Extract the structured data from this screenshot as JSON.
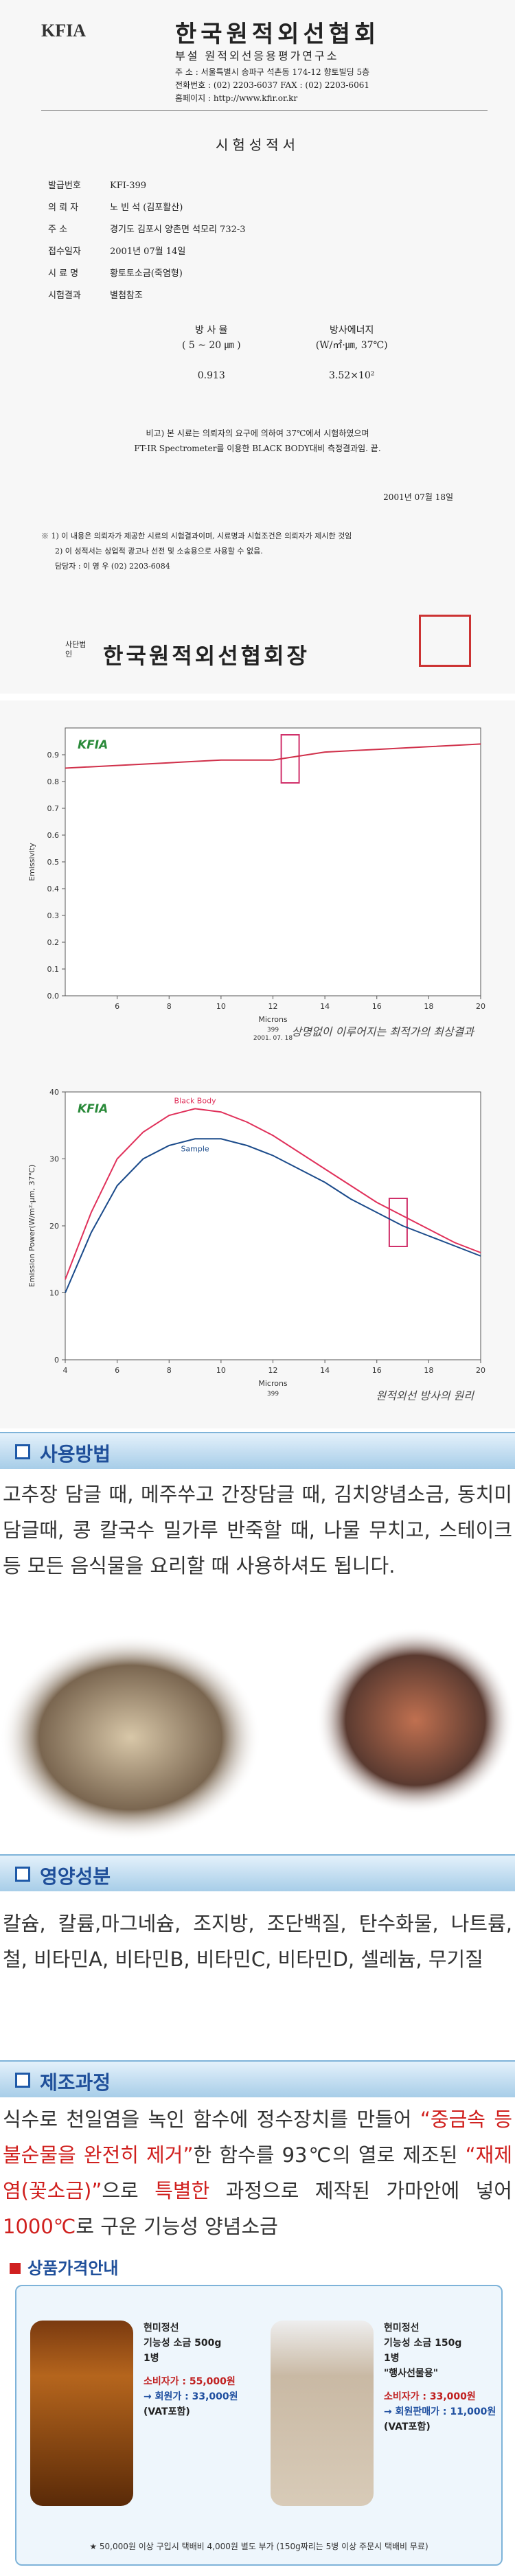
{
  "certificate": {
    "logo": "KFIA",
    "org": "한국원적외선협회",
    "institute": "부설 원적외선응용평가연구소",
    "address_lines": [
      "주 소 : 서울특별시 송파구 석촌동 174-12 향토빌딩 5층",
      "전화번호 : (02) 2203-6037   FAX : (02) 2203-6061",
      "홈페이지 : http://www.kfir.or.kr"
    ],
    "title": "시험성적서",
    "fields": [
      {
        "label": "발급번호",
        "value": "KFI-399"
      },
      {
        "label": "의 뢰 자",
        "value": "노 빈 석 (김포활산)"
      },
      {
        "label": "주 소",
        "value": "경기도 김포시 양촌면 석모리 732-3"
      },
      {
        "label": "접수일자",
        "value": "2001년 07월 14일"
      },
      {
        "label": "시 료 명",
        "value": "황토토소금(죽염형)"
      },
      {
        "label": "시험결과",
        "value": "별첨참조"
      }
    ],
    "results": {
      "headers": [
        [
          "방 사 율",
          "( 5 ~ 20 ㎛ )"
        ],
        [
          "방사에너지",
          "(W/㎡·㎛, 37℃)"
        ]
      ],
      "values": [
        "0.913",
        "3.52×10²"
      ]
    },
    "notes": [
      "비고) 본 시료는 의뢰자의 요구에 의하여 37℃에서 시험하였으며",
      "FT-IR Spectrometer를 이용한 BLACK BODY대비 측정결과임. 끝."
    ],
    "date": "2001년 07월 18일",
    "footnotes": [
      "※ 1) 이 내용은 의뢰자가 제공한 시료의 시험결과이며, 시료명과 시험조건은 의뢰자가 제시한 것임",
      "2) 이 성적서는 상업적 광고나 선전 및 소송용으로 사용할 수 없음."
    ],
    "contact": "담당자 : 이 영 우    (02) 2203-6084",
    "seal_prefix": "사단법인",
    "signature": "한국원적외선협회장"
  },
  "emissivity_chart": {
    "type": "line",
    "logo": "KFIA",
    "ylabel": "Emissivity",
    "xlabel": "Microns",
    "code": "399",
    "date": "2001. 07. 18",
    "annotation": "상명없이 이루어지는 최적가의 최상결과",
    "x": [
      4,
      6,
      8,
      10,
      12,
      14,
      16,
      18,
      20
    ],
    "series": [
      {
        "color": "#d0304a",
        "values": [
          0.85,
          0.86,
          0.87,
          0.88,
          0.88,
          0.91,
          0.92,
          0.93,
          0.94
        ]
      }
    ],
    "xlim": [
      4,
      20
    ],
    "xticks": [
      6,
      8,
      10,
      12,
      14,
      16,
      18,
      20
    ],
    "ylim": [
      0,
      1.0
    ],
    "yticks": [
      {
        "value": 0,
        "label": "0.0"
      },
      0.1,
      0.2,
      0.3,
      0.4,
      0.5,
      0.6,
      0.7,
      0.8,
      0.9
    ]
  },
  "emission_chart": {
    "type": "line",
    "logo": "KFIA",
    "ylabel": "Emission Power(W/m²·μm, 37℃)",
    "xlabel": "Microns",
    "code": "399",
    "annotation": "원적외선 방사의 원리",
    "x": [
      4,
      5,
      6,
      7,
      8,
      9,
      10,
      11,
      12,
      13,
      14,
      15,
      16,
      17,
      18,
      19,
      20
    ],
    "series": [
      {
        "name": "Black Body",
        "color": "#e0305a",
        "values": [
          12,
          22,
          30,
          34,
          36.5,
          37.5,
          37,
          35.5,
          33.5,
          31,
          28.5,
          26,
          23.5,
          21.5,
          19.5,
          17.5,
          16
        ]
      },
      {
        "name": "Sample",
        "color": "#1a4a8a",
        "values": [
          10,
          19,
          26,
          30,
          32,
          33,
          33,
          32,
          30.5,
          28.5,
          26.5,
          24,
          22,
          20,
          18.5,
          17,
          15.5
        ]
      }
    ],
    "xlim": [
      4,
      20
    ],
    "xticks": [
      4,
      6,
      8,
      10,
      12,
      14,
      16,
      18,
      20
    ],
    "ylim": [
      0,
      40
    ],
    "yticks": [
      0,
      10,
      20,
      30,
      40
    ]
  },
  "usage": {
    "heading": "사용방법",
    "text": "고추장 담글 때, 메주쑤고 간장담글 때, 김치양념소금, 동치미 담글때, 콩 칼국수 밀가루 반죽할 때, 나물 무치고, 스테이크 등 모든 음식물을 요리할 때 사용하셔도 됩니다."
  },
  "nutrition": {
    "heading": "영양성분",
    "text": "칼슘, 칼륨,마그네슘, 조지방, 조단백질, 탄수화물, 나트륨, 철, 비타민A, 비타민B, 비타민C, 비타민D, 셀레늄, 무기질"
  },
  "process": {
    "heading": "제조과정",
    "segments": [
      {
        "text": "식수로 천일염을 녹인 함수에 정수장치를 만들어 ",
        "highlight": false
      },
      {
        "text": "“중금속 등 불순물을 완전히 제거”",
        "highlight": true
      },
      {
        "text": "한 함수를 93℃의 열로 제조된 ",
        "highlight": false
      },
      {
        "text": "“재제염(꽃소금)”",
        "highlight": true
      },
      {
        "text": "으로 ",
        "highlight": false
      },
      {
        "text": "특별한",
        "highlight": true
      },
      {
        "text": " 과정으로 제작된 가마안에 넣어 ",
        "highlight": false
      },
      {
        "text": "1000℃",
        "highlight": true
      },
      {
        "text": "로 구운 기능성 양념소금",
        "highlight": false
      }
    ]
  },
  "price": {
    "heading": "상품가격안내",
    "products": [
      {
        "lines": [
          "현미정선",
          "기능성 소금 500g",
          "1병"
        ],
        "retail": "소비자가 : 55,000원",
        "member": "→ 회원가 : 33,000원",
        "vat": "(VAT포함)"
      },
      {
        "lines": [
          "현미정선",
          "기능성 소금 150g",
          "1병",
          "\"행사선물용\""
        ],
        "retail": "소비자가 : 33,000원",
        "member": "→ 회원판매가 : 11,000원",
        "vat": "(VAT포함)"
      }
    ],
    "footer": "★ 50,000원 이상 구입시 택배비 4,000원 별도 부가 (150g짜리는 5병 이상 주문시 택배비 무료)"
  }
}
